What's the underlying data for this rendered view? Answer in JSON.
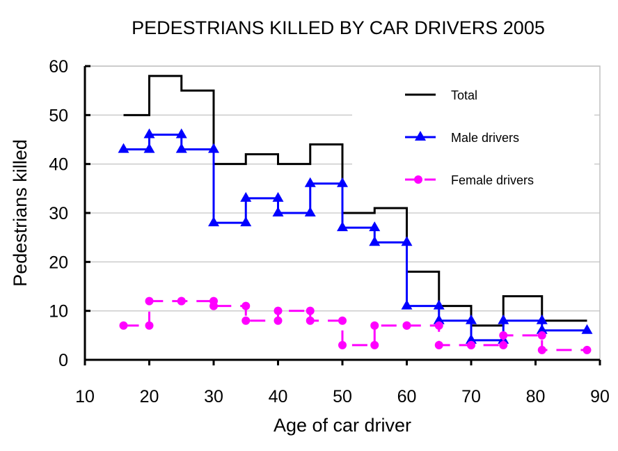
{
  "chart_data": {
    "type": "line",
    "subtype": "step",
    "title": "PEDESTRIANS KILLED BY CAR DRIVERS 2005",
    "xlabel": "Age of car driver",
    "ylabel": "Pedestrians killed",
    "xlim": [
      10,
      90
    ],
    "ylim": [
      0,
      60
    ],
    "xticks": [
      10,
      20,
      30,
      40,
      50,
      60,
      70,
      80,
      90
    ],
    "yticks": [
      0,
      10,
      20,
      30,
      40,
      50,
      60
    ],
    "grid": "horizontal",
    "legend_position": "top-right",
    "series": [
      {
        "name": "Total",
        "color": "#000000",
        "marker": "none",
        "dashed": false,
        "bins": [
          {
            "from": 16,
            "to": 20,
            "value": 50
          },
          {
            "from": 20,
            "to": 25,
            "value": 58
          },
          {
            "from": 25,
            "to": 30,
            "value": 55
          },
          {
            "from": 30,
            "to": 35,
            "value": 40
          },
          {
            "from": 35,
            "to": 40,
            "value": 42
          },
          {
            "from": 40,
            "to": 45,
            "value": 40
          },
          {
            "from": 45,
            "to": 50,
            "value": 44
          },
          {
            "from": 50,
            "to": 55,
            "value": 30
          },
          {
            "from": 55,
            "to": 60,
            "value": 31
          },
          {
            "from": 60,
            "to": 65,
            "value": 18
          },
          {
            "from": 65,
            "to": 70,
            "value": 11
          },
          {
            "from": 70,
            "to": 75,
            "value": 7
          },
          {
            "from": 75,
            "to": 81,
            "value": 13
          },
          {
            "from": 81,
            "to": 88,
            "value": 8
          }
        ]
      },
      {
        "name": "Male drivers",
        "color": "#0000FF",
        "marker": "triangle",
        "dashed": false,
        "bins": [
          {
            "from": 16,
            "to": 20,
            "value": 43
          },
          {
            "from": 20,
            "to": 25,
            "value": 46
          },
          {
            "from": 25,
            "to": 30,
            "value": 43
          },
          {
            "from": 30,
            "to": 35,
            "value": 28
          },
          {
            "from": 35,
            "to": 40,
            "value": 33
          },
          {
            "from": 40,
            "to": 45,
            "value": 30
          },
          {
            "from": 45,
            "to": 50,
            "value": 36
          },
          {
            "from": 50,
            "to": 55,
            "value": 27
          },
          {
            "from": 55,
            "to": 60,
            "value": 24
          },
          {
            "from": 60,
            "to": 65,
            "value": 11
          },
          {
            "from": 65,
            "to": 70,
            "value": 8
          },
          {
            "from": 70,
            "to": 75,
            "value": 4
          },
          {
            "from": 75,
            "to": 81,
            "value": 8
          },
          {
            "from": 81,
            "to": 88,
            "value": 6
          }
        ]
      },
      {
        "name": "Female drivers",
        "color": "#FF00FF",
        "marker": "circle",
        "dashed": true,
        "bins": [
          {
            "from": 16,
            "to": 20,
            "value": 7
          },
          {
            "from": 20,
            "to": 25,
            "value": 12
          },
          {
            "from": 25,
            "to": 30,
            "value": 12
          },
          {
            "from": 30,
            "to": 35,
            "value": 11
          },
          {
            "from": 35,
            "to": 40,
            "value": 8
          },
          {
            "from": 40,
            "to": 45,
            "value": 10
          },
          {
            "from": 45,
            "to": 50,
            "value": 8
          },
          {
            "from": 50,
            "to": 55,
            "value": 3
          },
          {
            "from": 55,
            "to": 60,
            "value": 7
          },
          {
            "from": 60,
            "to": 65,
            "value": 7
          },
          {
            "from": 65,
            "to": 70,
            "value": 3
          },
          {
            "from": 70,
            "to": 75,
            "value": 3
          },
          {
            "from": 75,
            "to": 81,
            "value": 5
          },
          {
            "from": 81,
            "to": 88,
            "value": 2
          }
        ]
      }
    ]
  }
}
